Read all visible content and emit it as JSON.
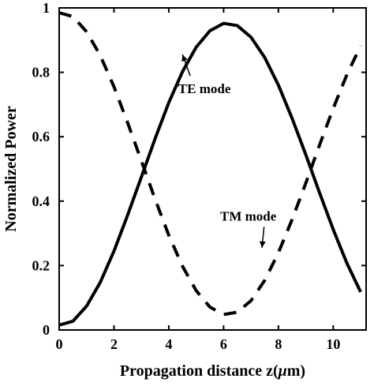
{
  "chart_data": {
    "type": "line",
    "title": "",
    "xlabel": "Propagation distance z(",
    "xlabel_symbol": "μ",
    "xlabel_suffix": "m)",
    "ylabel": "Normalized Power",
    "xlim": [
      0,
      11.2
    ],
    "ylim": [
      0,
      1
    ],
    "x_ticks": [
      "0",
      "2",
      "4",
      "6",
      "8",
      "10"
    ],
    "y_ticks": [
      "0",
      "0.2",
      "0.4",
      "0.6",
      "0.8",
      "1"
    ],
    "grid": false,
    "legend": "none",
    "series": [
      {
        "name": "TE mode",
        "style": "solid",
        "color": "#000000",
        "x": [
          0.0,
          0.5,
          1.0,
          1.5,
          2.0,
          2.5,
          3.0,
          3.5,
          4.0,
          4.5,
          5.0,
          5.5,
          6.0,
          6.5,
          7.0,
          7.5,
          8.0,
          8.5,
          9.0,
          9.5,
          10.0,
          10.5,
          11.0
        ],
        "values": [
          0.015,
          0.027,
          0.074,
          0.148,
          0.245,
          0.357,
          0.475,
          0.594,
          0.706,
          0.802,
          0.878,
          0.929,
          0.952,
          0.945,
          0.909,
          0.846,
          0.76,
          0.657,
          0.544,
          0.426,
          0.312,
          0.207,
          0.118
        ]
      },
      {
        "name": "TM mode",
        "style": "dashed",
        "color": "#000000",
        "x": [
          0.0,
          0.5,
          1.0,
          1.5,
          2.0,
          2.5,
          3.0,
          3.5,
          4.0,
          4.5,
          5.0,
          5.5,
          6.0,
          6.5,
          7.0,
          7.5,
          8.0,
          8.5,
          9.0,
          9.5,
          10.0,
          10.5,
          11.0
        ],
        "values": [
          0.985,
          0.973,
          0.926,
          0.852,
          0.755,
          0.643,
          0.525,
          0.406,
          0.294,
          0.198,
          0.122,
          0.071,
          0.048,
          0.055,
          0.091,
          0.154,
          0.24,
          0.343,
          0.456,
          0.574,
          0.688,
          0.793,
          0.882
        ]
      }
    ],
    "annotations": [
      {
        "text": "TE mode",
        "x": 5.3,
        "y": 0.735,
        "arrow_to": [
          4.5,
          0.855
        ]
      },
      {
        "text": "TM mode",
        "x": 6.9,
        "y": 0.34,
        "arrow_to": [
          7.4,
          0.255
        ]
      }
    ]
  }
}
